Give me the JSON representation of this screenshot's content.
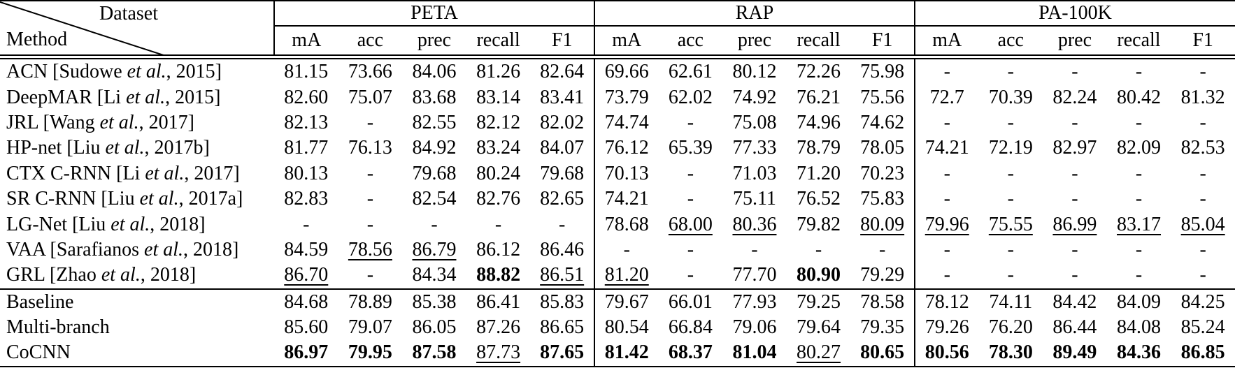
{
  "table": {
    "corner": {
      "dataset": "Dataset",
      "method": "Method"
    },
    "groups": [
      "PETA",
      "RAP",
      "PA-100K"
    ],
    "metrics": [
      "mA",
      "acc",
      "prec",
      "recall",
      "F1"
    ],
    "rows": [
      {
        "method": {
          "pre": "ACN [Sudowe ",
          "etal": "et al.",
          "post": ", 2015]"
        },
        "values": [
          "81.15",
          "73.66",
          "84.06",
          "81.26",
          "82.64",
          "69.66",
          "62.61",
          "80.12",
          "72.26",
          "75.98",
          "-",
          "-",
          "-",
          "-",
          "-"
        ],
        "styles": [
          "",
          "",
          "",
          "",
          "",
          "",
          "",
          "",
          "",
          "",
          "",
          "",
          "",
          "",
          ""
        ]
      },
      {
        "method": {
          "pre": "DeepMAR [Li ",
          "etal": "et al.",
          "post": ", 2015]"
        },
        "values": [
          "82.60",
          "75.07",
          "83.68",
          "83.14",
          "83.41",
          "73.79",
          "62.02",
          "74.92",
          "76.21",
          "75.56",
          "72.7",
          "70.39",
          "82.24",
          "80.42",
          "81.32"
        ],
        "styles": [
          "",
          "",
          "",
          "",
          "",
          "",
          "",
          "",
          "",
          "",
          "",
          "",
          "",
          "",
          ""
        ]
      },
      {
        "method": {
          "pre": "JRL [Wang ",
          "etal": "et al.",
          "post": ", 2017]"
        },
        "values": [
          "82.13",
          "-",
          "82.55",
          "82.12",
          "82.02",
          "74.74",
          "-",
          "75.08",
          "74.96",
          "74.62",
          "-",
          "-",
          "-",
          "-",
          "-"
        ],
        "styles": [
          "",
          "",
          "",
          "",
          "",
          "",
          "",
          "",
          "",
          "",
          "",
          "",
          "",
          "",
          ""
        ]
      },
      {
        "method": {
          "pre": "HP-net [Liu ",
          "etal": "et al.",
          "post": ", 2017b]"
        },
        "values": [
          "81.77",
          "76.13",
          "84.92",
          "83.24",
          "84.07",
          "76.12",
          "65.39",
          "77.33",
          "78.79",
          "78.05",
          "74.21",
          "72.19",
          "82.97",
          "82.09",
          "82.53"
        ],
        "styles": [
          "",
          "",
          "",
          "",
          "",
          "",
          "",
          "",
          "",
          "",
          "",
          "",
          "",
          "",
          ""
        ]
      },
      {
        "method": {
          "pre": "CTX C-RNN [Li ",
          "etal": "et al.",
          "post": ", 2017]"
        },
        "values": [
          "80.13",
          "-",
          "79.68",
          "80.24",
          "79.68",
          "70.13",
          "-",
          "71.03",
          "71.20",
          "70.23",
          "-",
          "-",
          "-",
          "-",
          "-"
        ],
        "styles": [
          "",
          "",
          "",
          "",
          "",
          "",
          "",
          "",
          "",
          "",
          "",
          "",
          "",
          "",
          ""
        ]
      },
      {
        "method": {
          "pre": "SR C-RNN [Liu ",
          "etal": "et al.",
          "post": ", 2017a]"
        },
        "values": [
          "82.83",
          "-",
          "82.54",
          "82.76",
          "82.65",
          "74.21",
          "-",
          "75.11",
          "76.52",
          "75.83",
          "-",
          "-",
          "-",
          "-",
          "-"
        ],
        "styles": [
          "",
          "",
          "",
          "",
          "",
          "",
          "",
          "",
          "",
          "",
          "",
          "",
          "",
          "",
          ""
        ]
      },
      {
        "method": {
          "pre": "LG-Net [Liu ",
          "etal": "et al.",
          "post": ", 2018]"
        },
        "values": [
          "-",
          "-",
          "-",
          "-",
          "-",
          "78.68",
          "68.00",
          "80.36",
          "79.82",
          "80.09",
          "79.96",
          "75.55",
          "86.99",
          "83.17",
          "85.04"
        ],
        "styles": [
          "",
          "",
          "",
          "",
          "",
          "",
          "u",
          "u",
          "",
          "u",
          "u",
          "u",
          "u",
          "u",
          "u"
        ]
      },
      {
        "method": {
          "pre": "VAA [Sarafianos ",
          "etal": "et al.",
          "post": ", 2018]"
        },
        "values": [
          "84.59",
          "78.56",
          "86.79",
          "86.12",
          "86.46",
          "-",
          "-",
          "-",
          "-",
          "-",
          "-",
          "-",
          "-",
          "-",
          "-"
        ],
        "styles": [
          "",
          "u",
          "u",
          "",
          "",
          "",
          "",
          "",
          "",
          "",
          "",
          "",
          "",
          "",
          ""
        ]
      },
      {
        "method": {
          "pre": "GRL [Zhao ",
          "etal": "et al.",
          "post": ", 2018]"
        },
        "values": [
          "86.70",
          "-",
          "84.34",
          "88.82",
          "86.51",
          "81.20",
          "-",
          "77.70",
          "80.90",
          "79.29",
          "-",
          "-",
          "-",
          "-",
          "-"
        ],
        "styles": [
          "u",
          "",
          "",
          "b",
          "u",
          "u",
          "",
          "",
          "b",
          "",
          "",
          "",
          "",
          "",
          ""
        ]
      },
      {
        "method": {
          "pre": "Baseline",
          "etal": "",
          "post": ""
        },
        "section": true,
        "values": [
          "84.68",
          "78.89",
          "85.38",
          "86.41",
          "85.83",
          "79.67",
          "66.01",
          "77.93",
          "79.25",
          "78.58",
          "78.12",
          "74.11",
          "84.42",
          "84.09",
          "84.25"
        ],
        "styles": [
          "",
          "",
          "",
          "",
          "",
          "",
          "",
          "",
          "",
          "",
          "",
          "",
          "",
          "",
          ""
        ]
      },
      {
        "method": {
          "pre": "Multi-branch",
          "etal": "",
          "post": ""
        },
        "values": [
          "85.60",
          "79.07",
          "86.05",
          "87.26",
          "86.65",
          "80.54",
          "66.84",
          "79.06",
          "79.64",
          "79.35",
          "79.26",
          "76.20",
          "86.44",
          "84.08",
          "85.24"
        ],
        "styles": [
          "",
          "",
          "",
          "",
          "",
          "",
          "",
          "",
          "",
          "",
          "",
          "",
          "",
          "",
          ""
        ]
      },
      {
        "method": {
          "pre": "CoCNN",
          "etal": "",
          "post": ""
        },
        "values": [
          "86.97",
          "79.95",
          "87.58",
          "87.73",
          "87.65",
          "81.42",
          "68.37",
          "81.04",
          "80.27",
          "80.65",
          "80.56",
          "78.30",
          "89.49",
          "84.36",
          "86.85"
        ],
        "styles": [
          "b",
          "b",
          "b",
          "u",
          "b",
          "b",
          "b",
          "b",
          "u",
          "b",
          "b",
          "b",
          "b",
          "b",
          "b"
        ]
      }
    ]
  }
}
